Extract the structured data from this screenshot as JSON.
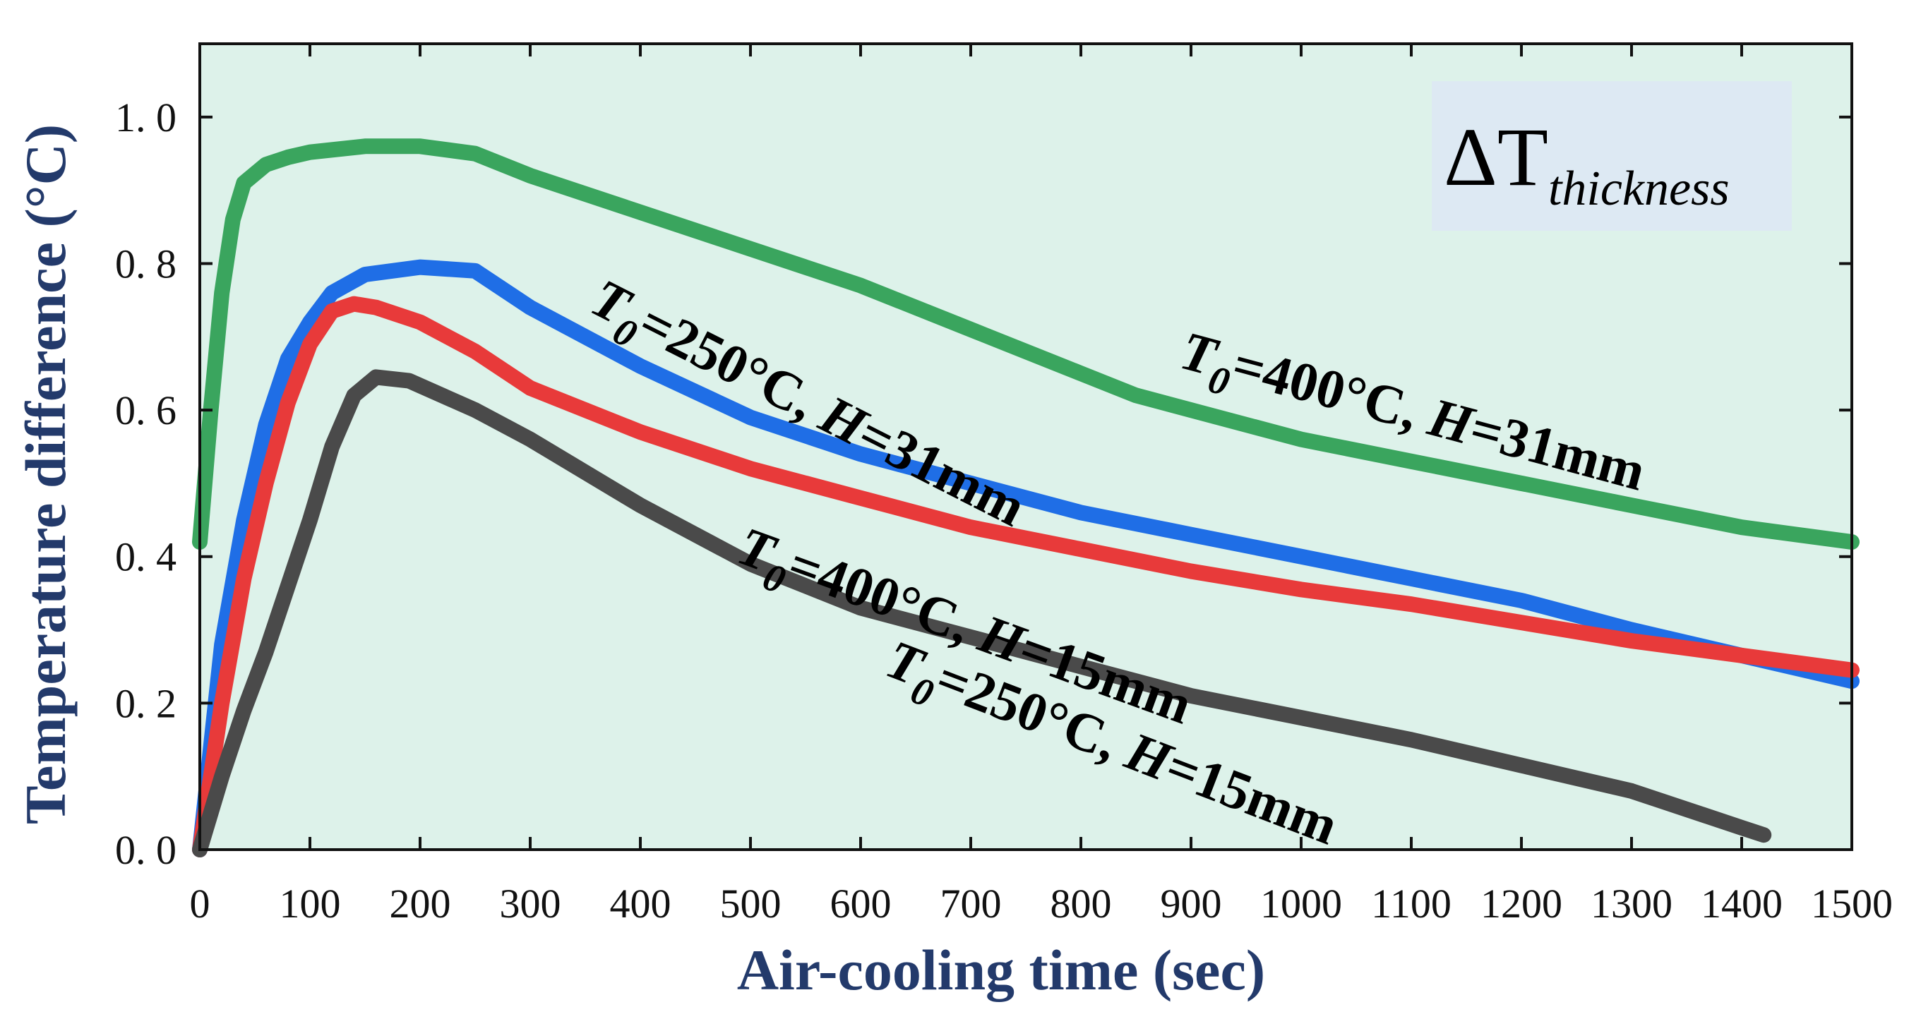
{
  "chart_data": {
    "type": "line",
    "title": "",
    "xlabel": "Air-cooling time (sec)",
    "ylabel": "Temperature difference (°C)",
    "xlim": [
      0,
      1500
    ],
    "ylim": [
      0,
      1.1
    ],
    "grid": false,
    "x_ticks": [
      0,
      100,
      200,
      300,
      400,
      500,
      600,
      700,
      800,
      900,
      1000,
      1100,
      1200,
      1300,
      1400,
      1500
    ],
    "x_tick_labels": [
      "0",
      "100",
      "200",
      "300",
      "400",
      "500",
      "600",
      "700",
      "800",
      "900",
      "1000",
      "1100",
      "1200",
      "1300",
      "1400",
      "1500"
    ],
    "y_ticks": [
      0,
      0.2,
      0.4,
      0.6,
      0.8,
      1.0
    ],
    "y_tick_labels": [
      "0. 0",
      "0. 2",
      "0. 4",
      "0. 6",
      "0. 8",
      "1. 0"
    ],
    "inset_label": {
      "symbol": "ΔT",
      "subscript": "thickness"
    },
    "series": [
      {
        "name": "T0=400°C, H=31mm",
        "label_parts": [
          "T",
          "0",
          "=400°C, ",
          "H",
          "=31mm"
        ],
        "color": "#3aa55e",
        "points": [
          [
            0,
            0.42
          ],
          [
            10,
            0.6
          ],
          [
            20,
            0.76
          ],
          [
            30,
            0.86
          ],
          [
            40,
            0.91
          ],
          [
            60,
            0.935
          ],
          [
            80,
            0.945
          ],
          [
            100,
            0.952
          ],
          [
            150,
            0.96
          ],
          [
            200,
            0.96
          ],
          [
            250,
            0.95
          ],
          [
            300,
            0.92
          ],
          [
            400,
            0.87
          ],
          [
            500,
            0.82
          ],
          [
            600,
            0.77
          ],
          [
            700,
            0.71
          ],
          [
            800,
            0.65
          ],
          [
            850,
            0.62
          ],
          [
            900,
            0.6
          ],
          [
            1000,
            0.56
          ],
          [
            1100,
            0.53
          ],
          [
            1200,
            0.5
          ],
          [
            1300,
            0.47
          ],
          [
            1400,
            0.44
          ],
          [
            1500,
            0.42
          ]
        ]
      },
      {
        "name": "T0=250°C, H=31mm",
        "label_parts": [
          "T",
          "0",
          "=250°C, ",
          "H",
          "=31mm"
        ],
        "color": "#1f6ee6",
        "points": [
          [
            0,
            0
          ],
          [
            20,
            0.28
          ],
          [
            40,
            0.45
          ],
          [
            60,
            0.58
          ],
          [
            80,
            0.67
          ],
          [
            100,
            0.72
          ],
          [
            120,
            0.76
          ],
          [
            150,
            0.785
          ],
          [
            200,
            0.795
          ],
          [
            250,
            0.79
          ],
          [
            300,
            0.74
          ],
          [
            400,
            0.66
          ],
          [
            500,
            0.59
          ],
          [
            600,
            0.54
          ],
          [
            700,
            0.5
          ],
          [
            800,
            0.46
          ],
          [
            900,
            0.43
          ],
          [
            1000,
            0.4
          ],
          [
            1100,
            0.37
          ],
          [
            1200,
            0.34
          ],
          [
            1300,
            0.3
          ],
          [
            1400,
            0.265
          ],
          [
            1500,
            0.23
          ]
        ]
      },
      {
        "name": "T0=400°C, H=15mm",
        "label_parts": [
          "T",
          "0",
          "=400°C, ",
          "H",
          "=15mm"
        ],
        "color": "#e83a3a",
        "points": [
          [
            0,
            0
          ],
          [
            20,
            0.2
          ],
          [
            40,
            0.37
          ],
          [
            60,
            0.5
          ],
          [
            80,
            0.61
          ],
          [
            100,
            0.69
          ],
          [
            120,
            0.735
          ],
          [
            140,
            0.745
          ],
          [
            160,
            0.74
          ],
          [
            200,
            0.72
          ],
          [
            250,
            0.68
          ],
          [
            300,
            0.63
          ],
          [
            400,
            0.57
          ],
          [
            500,
            0.52
          ],
          [
            600,
            0.48
          ],
          [
            700,
            0.44
          ],
          [
            800,
            0.41
          ],
          [
            900,
            0.38
          ],
          [
            1000,
            0.355
          ],
          [
            1100,
            0.335
          ],
          [
            1200,
            0.31
          ],
          [
            1300,
            0.285
          ],
          [
            1400,
            0.265
          ],
          [
            1500,
            0.245
          ]
        ]
      },
      {
        "name": "T0=250°C, H=15mm",
        "label_parts": [
          "T",
          "0",
          "=250°C, ",
          "H",
          "=15mm"
        ],
        "color": "#4a4a4a",
        "points": [
          [
            0,
            0
          ],
          [
            20,
            0.1
          ],
          [
            40,
            0.19
          ],
          [
            60,
            0.27
          ],
          [
            80,
            0.36
          ],
          [
            100,
            0.45
          ],
          [
            120,
            0.55
          ],
          [
            140,
            0.62
          ],
          [
            160,
            0.645
          ],
          [
            190,
            0.64
          ],
          [
            250,
            0.6
          ],
          [
            300,
            0.56
          ],
          [
            400,
            0.47
          ],
          [
            500,
            0.39
          ],
          [
            600,
            0.33
          ],
          [
            700,
            0.29
          ],
          [
            800,
            0.25
          ],
          [
            900,
            0.21
          ],
          [
            1000,
            0.18
          ],
          [
            1100,
            0.15
          ],
          [
            1200,
            0.115
          ],
          [
            1300,
            0.08
          ],
          [
            1400,
            0.03
          ],
          [
            1420,
            0.02
          ]
        ]
      }
    ]
  }
}
